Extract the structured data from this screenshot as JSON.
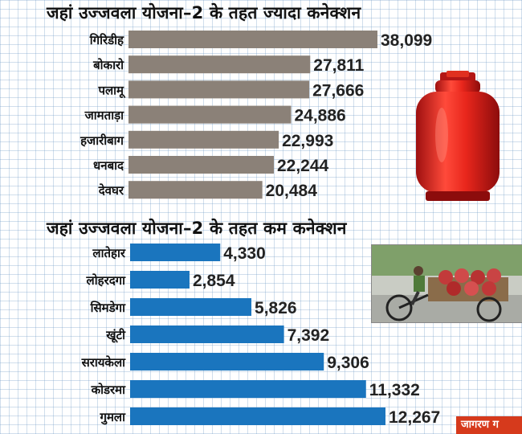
{
  "chart_data": [
    {
      "type": "bar",
      "orientation": "horizontal",
      "title": "जहां उज्जवला योजना–2 के तहत ज्यादा कनेक्शन",
      "categories": [
        "गिरिडीह",
        "बोकारो",
        "पलामू",
        "जामताड़ा",
        "हजारीबाग",
        "धनबाद",
        "देवघर"
      ],
      "values": [
        38099,
        27811,
        27666,
        24886,
        22993,
        22244,
        20484
      ],
      "value_labels": [
        "38,099",
        "27,811",
        "27,666",
        "24,886",
        "22,993",
        "22,244",
        "20,484"
      ],
      "color": "#8b8178",
      "grid": true
    },
    {
      "type": "bar",
      "orientation": "horizontal",
      "title": "जहां उज्जवला योजना–2 के तहत कम कनेक्शन",
      "categories": [
        "लातेहार",
        "लोहरदगा",
        "सिमडेगा",
        "खूंटी",
        "सरायकेला",
        "कोडरमा",
        "गुमला"
      ],
      "values": [
        4330,
        2854,
        5826,
        7392,
        9306,
        11332,
        12267
      ],
      "value_labels": [
        "4,330",
        "2,854",
        "5,826",
        "7,392",
        "9,306",
        "11,332",
        "12,267"
      ],
      "color": "#1a75be",
      "grid": true
    }
  ],
  "brand_text": "जागरण ग"
}
